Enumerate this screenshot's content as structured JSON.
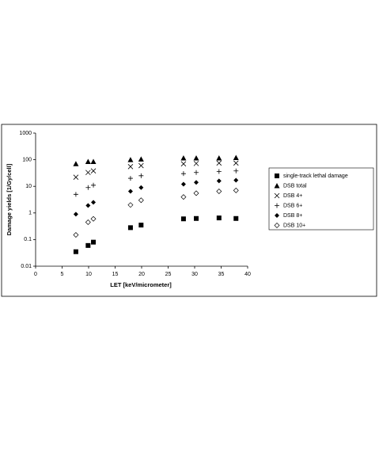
{
  "chart_data": {
    "type": "scatter",
    "x_label": "LET [keV/micrometer]",
    "y_label": "Damage yields [1/Gy/cell]",
    "x": [
      7.6,
      9.9,
      10.9,
      17.9,
      19.9,
      27.9,
      30.3,
      34.6,
      37.8
    ],
    "series": [
      {
        "name": "single-track lethal damage",
        "color": "#000000",
        "marker": "square",
        "values": [
          0.035,
          0.06,
          0.08,
          0.28,
          0.35,
          0.6,
          0.62,
          0.65,
          0.62
        ]
      },
      {
        "name": "DSB total",
        "color": "#000000",
        "marker": "triangle",
        "values": [
          70,
          85,
          85,
          100,
          105,
          115,
          115,
          115,
          120
        ]
      },
      {
        "name": "DSB 4+",
        "color": "#000000",
        "marker": "x",
        "values": [
          22,
          33,
          38,
          55,
          60,
          70,
          72,
          75,
          75
        ]
      },
      {
        "name": "DSB 6+",
        "color": "#000000",
        "marker": "plus",
        "values": [
          5,
          9,
          11,
          20,
          25,
          30,
          33,
          36,
          38
        ]
      },
      {
        "name": "DSB 8+",
        "color": "#000000",
        "marker": "diamond",
        "values": [
          0.9,
          1.9,
          2.5,
          6.5,
          9,
          12,
          14,
          16,
          17
        ]
      },
      {
        "name": "DSB 10+",
        "color": "#000000",
        "marker": "open-diamond",
        "values": [
          0.15,
          0.45,
          0.6,
          2,
          3,
          4,
          5.5,
          6.5,
          7
        ]
      }
    ],
    "xlim": [
      0,
      40
    ],
    "xticks": [
      0,
      5,
      10,
      15,
      20,
      25,
      30,
      35,
      40
    ],
    "ylim": [
      0.01,
      1000
    ],
    "yticks": [
      0.01,
      0.1,
      1,
      10,
      100,
      1000
    ],
    "log_y": true,
    "grid": false,
    "legend": "right"
  }
}
